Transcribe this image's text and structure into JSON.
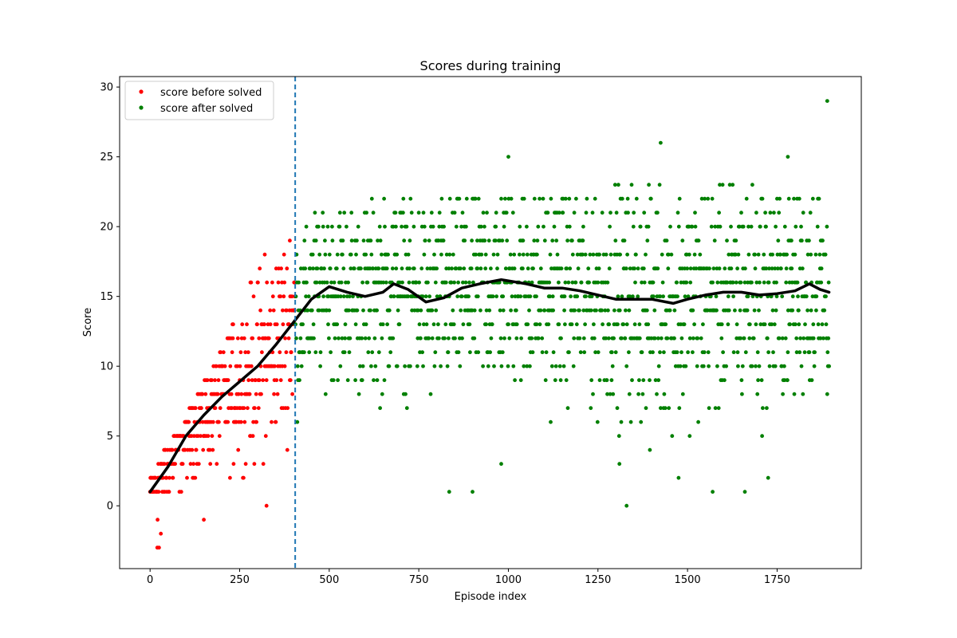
{
  "chart_data": {
    "type": "scatter",
    "title": "Scores during training",
    "xlabel": "Episode index",
    "ylabel": "Score",
    "xlim": [
      -85,
      1985
    ],
    "ylim": [
      -4.5,
      30.75
    ],
    "xticks": [
      0,
      250,
      500,
      750,
      1000,
      1250,
      1500,
      1750
    ],
    "yticks": [
      0,
      5,
      10,
      15,
      20,
      25,
      30
    ],
    "grid": false,
    "legend": {
      "placement": "top-left",
      "entries": [
        "score before solved",
        "score after solved"
      ]
    },
    "solved_episode": 405,
    "colors": {
      "before": "#ff0000",
      "after": "#008000",
      "average": "#000000",
      "solved_line": "#1f77b4"
    },
    "series": [
      {
        "name": "score before solved",
        "y_range_by_episode": [
          [
            0,
            -3,
            2
          ],
          [
            100,
            -1,
            6
          ],
          [
            200,
            1,
            11
          ],
          [
            300,
            3,
            17
          ],
          [
            405,
            4,
            19
          ]
        ],
        "highlights": [
          [
            20,
            -3
          ],
          [
            25,
            -3
          ],
          [
            30,
            -2
          ],
          [
            150,
            -1
          ],
          [
            325,
            0
          ],
          [
            320,
            18
          ],
          [
            390,
            19
          ]
        ]
      },
      {
        "name": "score after solved",
        "y_range_by_episode": [
          [
            405,
            6,
            19
          ],
          [
            500,
            8,
            22
          ],
          [
            1000,
            6,
            22
          ],
          [
            1500,
            5,
            23
          ],
          [
            1895,
            5,
            22
          ]
        ],
        "highlights": [
          [
            835,
            1
          ],
          [
            900,
            1
          ],
          [
            980,
            3
          ],
          [
            1000,
            25
          ],
          [
            1330,
            0
          ],
          [
            1310,
            3
          ],
          [
            1395,
            4
          ],
          [
            1425,
            26
          ],
          [
            1475,
            2
          ],
          [
            1570,
            1
          ],
          [
            1660,
            1
          ],
          [
            1725,
            2
          ],
          [
            1780,
            25
          ],
          [
            1890,
            29
          ]
        ]
      },
      {
        "name": "",
        "type": "line",
        "points": [
          [
            0,
            1
          ],
          [
            50,
            2.8
          ],
          [
            100,
            5
          ],
          [
            150,
            6.5
          ],
          [
            200,
            7.8
          ],
          [
            250,
            8.9
          ],
          [
            300,
            10
          ],
          [
            350,
            11.5
          ],
          [
            405,
            13.3
          ],
          [
            450,
            14.8
          ],
          [
            500,
            15.7
          ],
          [
            550,
            15.3
          ],
          [
            600,
            15
          ],
          [
            650,
            15.3
          ],
          [
            680,
            15.9
          ],
          [
            720,
            15.5
          ],
          [
            770,
            14.6
          ],
          [
            820,
            14.9
          ],
          [
            870,
            15.6
          ],
          [
            920,
            15.9
          ],
          [
            980,
            16.2
          ],
          [
            1050,
            15.9
          ],
          [
            1100,
            15.6
          ],
          [
            1150,
            15.6
          ],
          [
            1200,
            15.4
          ],
          [
            1250,
            15.1
          ],
          [
            1300,
            14.8
          ],
          [
            1350,
            14.8
          ],
          [
            1400,
            14.8
          ],
          [
            1460,
            14.5
          ],
          [
            1500,
            14.8
          ],
          [
            1550,
            15.1
          ],
          [
            1600,
            15.3
          ],
          [
            1650,
            15.3
          ],
          [
            1700,
            15.1
          ],
          [
            1750,
            15.2
          ],
          [
            1800,
            15.4
          ],
          [
            1840,
            15.9
          ],
          [
            1870,
            15.5
          ],
          [
            1895,
            15.3
          ]
        ]
      }
    ]
  }
}
